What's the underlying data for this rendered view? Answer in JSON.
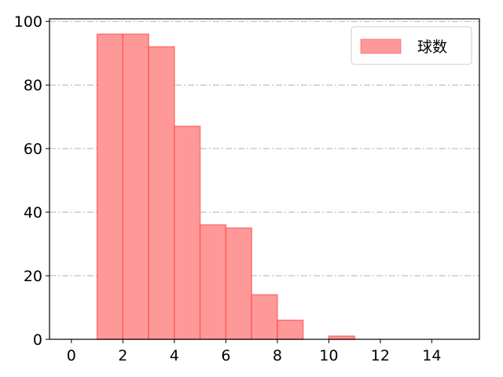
{
  "chart_data": {
    "type": "bar",
    "histogram": true,
    "bin_edges": [
      1,
      2,
      3,
      4,
      5,
      6,
      7,
      8,
      9,
      10,
      11
    ],
    "values": [
      96,
      96,
      92,
      67,
      36,
      35,
      14,
      6,
      0,
      1
    ],
    "series": [
      {
        "name": "球数",
        "values": [
          96,
          96,
          92,
          67,
          36,
          35,
          14,
          6,
          0,
          1
        ]
      }
    ],
    "xlim": [
      -0.85,
      15.85
    ],
    "ylim": [
      0,
      100.8
    ],
    "xticks": [
      "0",
      "2",
      "4",
      "6",
      "8",
      "10",
      "12",
      "14"
    ],
    "yticks": [
      "0",
      "20",
      "40",
      "60",
      "80",
      "100"
    ],
    "grid": {
      "axis": "y",
      "style": "dash-dot",
      "color": "#b0b0b0"
    },
    "legend": "top-right",
    "colors": {
      "bar_fill": "#ff9999",
      "bar_edge": "#ff4d4d"
    }
  }
}
